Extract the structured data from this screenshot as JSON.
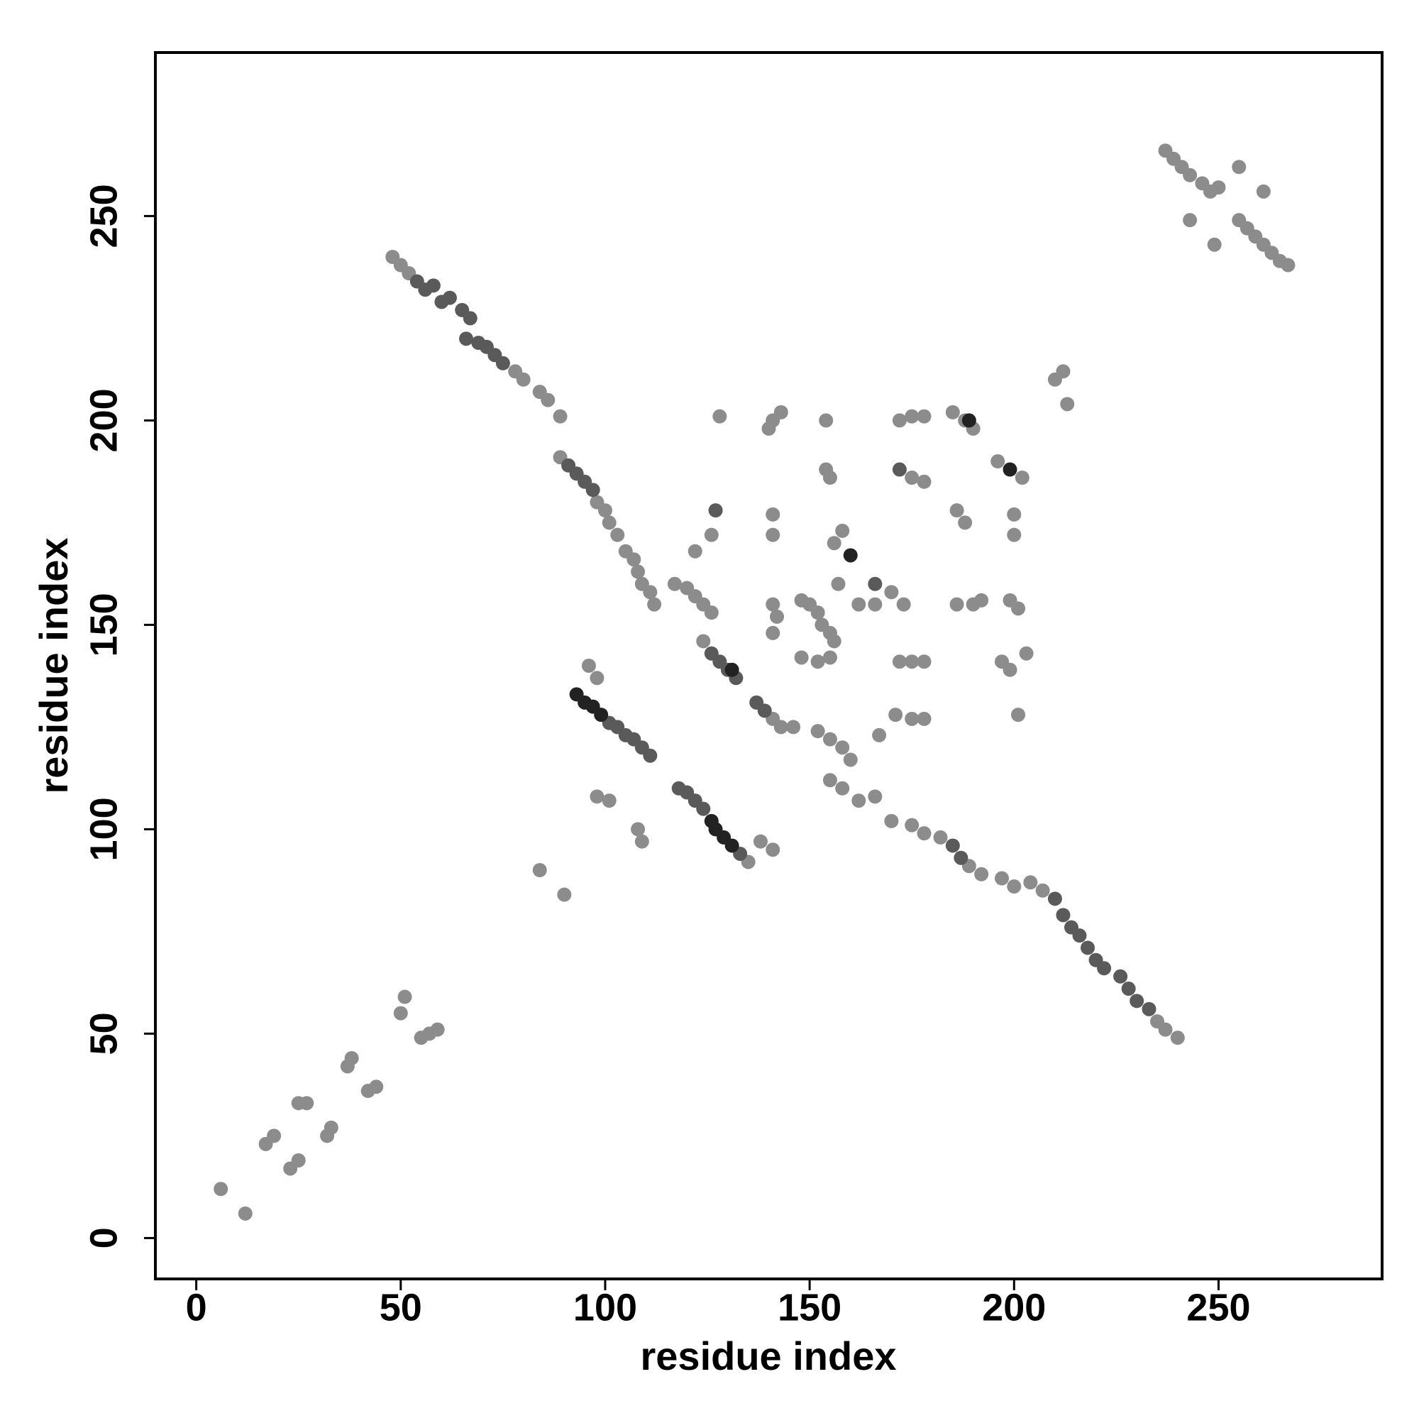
{
  "chart_data": {
    "type": "scatter",
    "xlabel": "residue index",
    "ylabel": "residue index",
    "xlim": [
      -10,
      290
    ],
    "ylim": [
      -10,
      290
    ],
    "xticks": [
      0,
      50,
      100,
      150,
      200,
      250
    ],
    "yticks": [
      0,
      50,
      100,
      150,
      200,
      250
    ],
    "series": [
      {
        "color": "#8c8c8c",
        "x": [
          6,
          12,
          17,
          19,
          23,
          25,
          25,
          27,
          32,
          33,
          37,
          38,
          42,
          44,
          50,
          51,
          55,
          57,
          59,
          48,
          50,
          52,
          78,
          80,
          84,
          86,
          89,
          89,
          98,
          100,
          101,
          103,
          105,
          107,
          108,
          109,
          111,
          112,
          117,
          120,
          122,
          124,
          126,
          124,
          141,
          143,
          146,
          152,
          155,
          158,
          160,
          155,
          158,
          162,
          166,
          170,
          175,
          178,
          182,
          189,
          192,
          197,
          200,
          204,
          207,
          235,
          237,
          240,
          135,
          84,
          90,
          98,
          101,
          108,
          109,
          138,
          141,
          96,
          98,
          237,
          239,
          241,
          243,
          246,
          248,
          250,
          255,
          261,
          243,
          249,
          255,
          257,
          259,
          261,
          263,
          265,
          267,
          141,
          143,
          140,
          154,
          155,
          154,
          128,
          126,
          122,
          141,
          141,
          141,
          142,
          141,
          148,
          150,
          152,
          153,
          155,
          156,
          155,
          157,
          158,
          156,
          162,
          148,
          152,
          166,
          170,
          173,
          175,
          178,
          172,
          175,
          178,
          172,
          175,
          178,
          171,
          175,
          178,
          167,
          185,
          188,
          190,
          186,
          188,
          186,
          190,
          192,
          196,
          202,
          200,
          200,
          199,
          201,
          197,
          199,
          203,
          201,
          210,
          212,
          213
        ],
        "y": [
          12,
          6,
          23,
          25,
          17,
          19,
          33,
          33,
          25,
          27,
          42,
          44,
          36,
          37,
          55,
          59,
          49,
          50,
          51,
          240,
          238,
          236,
          212,
          210,
          207,
          205,
          201,
          191,
          180,
          178,
          175,
          172,
          168,
          166,
          163,
          160,
          158,
          155,
          160,
          159,
          157,
          155,
          153,
          146,
          127,
          125,
          125,
          124,
          122,
          120,
          117,
          112,
          110,
          107,
          108,
          102,
          101,
          99,
          98,
          91,
          89,
          88,
          86,
          87,
          85,
          53,
          51,
          49,
          92,
          90,
          84,
          108,
          107,
          100,
          97,
          97,
          95,
          140,
          137,
          266,
          264,
          262,
          260,
          258,
          256,
          257,
          262,
          256,
          249,
          243,
          249,
          247,
          245,
          243,
          241,
          239,
          238,
          200,
          202,
          198,
          200,
          186,
          188,
          201,
          172,
          168,
          177,
          172,
          155,
          152,
          148,
          156,
          155,
          153,
          150,
          148,
          146,
          142,
          160,
          173,
          170,
          155,
          142,
          141,
          155,
          158,
          155,
          186,
          185,
          200,
          201,
          201,
          141,
          141,
          141,
          128,
          127,
          127,
          123,
          202,
          200,
          198,
          178,
          175,
          155,
          155,
          156,
          190,
          186,
          177,
          172,
          156,
          154,
          141,
          139,
          143,
          128,
          210,
          212,
          204
        ]
      },
      {
        "color": "#5a5a5a",
        "x": [
          54,
          56,
          58,
          60,
          62,
          65,
          67,
          66,
          69,
          71,
          73,
          75,
          91,
          93,
          95,
          97,
          126,
          128,
          130,
          132,
          137,
          139,
          185,
          187,
          210,
          212,
          214,
          216,
          218,
          220,
          222,
          226,
          228,
          230,
          233,
          101,
          103,
          105,
          107,
          109,
          111,
          118,
          120,
          122,
          124,
          133,
          166,
          172,
          127
        ],
        "y": [
          234,
          232,
          233,
          229,
          230,
          227,
          225,
          220,
          219,
          218,
          216,
          214,
          189,
          187,
          185,
          183,
          143,
          141,
          139,
          137,
          131,
          129,
          96,
          93,
          83,
          79,
          76,
          74,
          71,
          68,
          66,
          64,
          61,
          58,
          56,
          126,
          125,
          123,
          122,
          120,
          118,
          110,
          109,
          107,
          105,
          94,
          160,
          188,
          178
        ]
      },
      {
        "color": "#222222",
        "x": [
          93,
          95,
          97,
          99,
          126,
          127,
          129,
          131,
          160,
          189,
          199,
          131
        ],
        "y": [
          133,
          131,
          130,
          128,
          102,
          100,
          98,
          96,
          167,
          200,
          188,
          139
        ]
      }
    ]
  }
}
